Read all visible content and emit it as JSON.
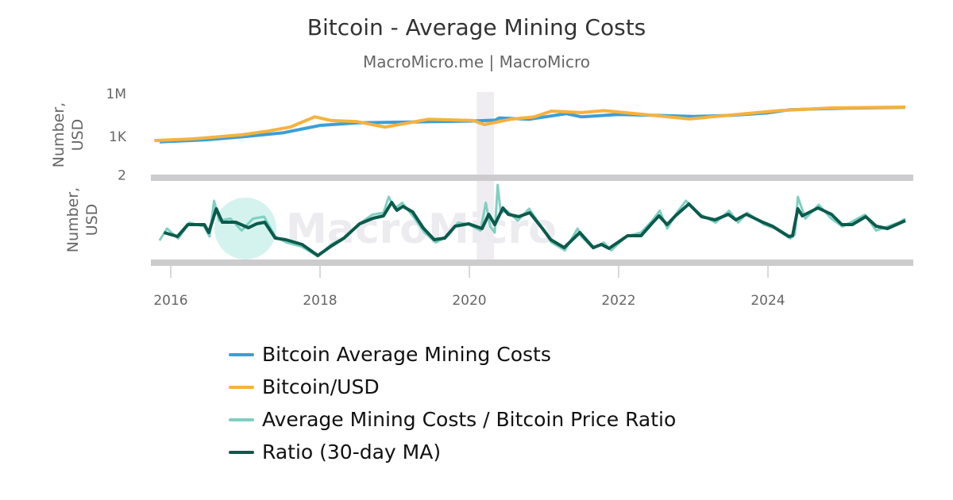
{
  "chart_data": {
    "type": "line",
    "title": "Bitcoin - Average Mining Costs",
    "subtitle": "MacroMicro.me | MacroMicro",
    "watermark": "MacroMicro",
    "x_ticks": [
      "2016",
      "2018",
      "2020",
      "2022",
      "2024"
    ],
    "xlim": [
      2015.8,
      2025.9
    ],
    "shaded_ranges": [
      [
        2020.1,
        2020.33
      ]
    ],
    "panels": [
      {
        "ylabel": "Number, USD",
        "scale": "log",
        "ylim": [
          2,
          1260000
        ],
        "y_ticks": [
          {
            "label": "1M",
            "value": 1000000
          },
          {
            "label": "1K",
            "value": 1000
          },
          {
            "label": "2",
            "value": 2
          }
        ],
        "series": [
          {
            "name": "Bitcoin Average Mining Costs",
            "color": "#3a9fd9",
            "x": [
              2015.85,
              2016.5,
              2017.0,
              2017.5,
              2018.0,
              2018.5,
              2019.0,
              2019.5,
              2020.0,
              2020.35,
              2020.4,
              2020.8,
              2021.3,
              2021.5,
              2022.0,
              2022.5,
              2023.0,
              2023.5,
              2024.0,
              2024.3,
              2025.0,
              2025.84
            ],
            "y": [
              420,
              600,
              1000,
              1800,
              6000,
              9000,
              10000,
              11000,
              12000,
              14000,
              20000,
              16000,
              40000,
              24000,
              35000,
              30000,
              25000,
              30000,
              45000,
              75000,
              95000,
              110000
            ]
          },
          {
            "name": "Bitcoin/USD",
            "color": "#f6b23c",
            "x": [
              2015.78,
              2016.3,
              2016.95,
              2017.3,
              2017.6,
              2017.93,
              2018.15,
              2018.5,
              2018.87,
              2019.45,
              2020.05,
              2020.2,
              2020.55,
              2020.87,
              2021.1,
              2021.5,
              2021.8,
              2022.45,
              2022.95,
              2023.45,
              2024.15,
              2024.85,
              2025.84
            ],
            "y": [
              520,
              680,
              1300,
              2400,
              4600,
              24000,
              13000,
              11000,
              4600,
              16000,
              13000,
              6800,
              16000,
              24000,
              60000,
              47000,
              65000,
              31000,
              17000,
              30000,
              65000,
              100000,
              115000
            ]
          }
        ]
      },
      {
        "ylabel": "Number, USD",
        "scale": "linear",
        "ylim": [
          0,
          2
        ],
        "series": [
          {
            "name": "Average Mining Costs / Bitcoin Price Ratio",
            "color": "#7fcfc2",
            "x": [
              2015.85,
              2015.95,
              2016.1,
              2016.25,
              2016.45,
              2016.52,
              2016.58,
              2016.65,
              2016.8,
              2016.95,
              2017.1,
              2017.25,
              2017.4,
              2017.55,
              2017.75,
              2017.97,
              2018.15,
              2018.35,
              2018.55,
              2018.7,
              2018.85,
              2018.92,
              2019.0,
              2019.1,
              2019.25,
              2019.4,
              2019.55,
              2019.7,
              2019.85,
              2020.0,
              2020.15,
              2020.22,
              2020.28,
              2020.34,
              2020.38,
              2020.42,
              2020.5,
              2020.65,
              2020.8,
              2021.0,
              2021.1,
              2021.28,
              2021.45,
              2021.5,
              2021.66,
              2021.8,
              2021.9,
              2022.1,
              2022.3,
              2022.45,
              2022.55,
              2022.65,
              2022.78,
              2022.9,
              2023.1,
              2023.3,
              2023.48,
              2023.6,
              2023.72,
              2023.95,
              2024.1,
              2024.3,
              2024.36,
              2024.4,
              2024.5,
              2024.68,
              2024.85,
              2025.0,
              2025.15,
              2025.3,
              2025.45,
              2025.6,
              2025.75,
              2025.84
            ],
            "y": [
              0.5,
              0.8,
              0.55,
              0.95,
              0.85,
              0.6,
              1.5,
              1.0,
              1.05,
              0.75,
              1.05,
              1.1,
              0.6,
              0.45,
              0.35,
              0.1,
              0.4,
              0.6,
              0.95,
              1.15,
              1.2,
              1.6,
              1.3,
              1.45,
              1.1,
              0.7,
              0.45,
              0.6,
              0.95,
              0.9,
              0.75,
              1.45,
              0.85,
              0.7,
              1.9,
              1.2,
              1.25,
              1.0,
              1.3,
              0.75,
              0.45,
              0.25,
              0.8,
              0.6,
              0.3,
              0.45,
              0.25,
              0.6,
              0.7,
              1.0,
              1.25,
              0.8,
              1.2,
              1.5,
              1.15,
              0.95,
              1.25,
              0.95,
              1.2,
              0.9,
              0.8,
              0.55,
              0.65,
              1.6,
              1.05,
              1.4,
              1.05,
              0.85,
              1.0,
              1.15,
              0.75,
              0.85,
              0.95,
              1.05
            ]
          },
          {
            "name": "Ratio (30-day MA)",
            "color": "#0b5b4d",
            "x": [
              2015.91,
              2016.09,
              2016.23,
              2016.45,
              2016.51,
              2016.61,
              2016.69,
              2016.87,
              2017.04,
              2017.15,
              2017.26,
              2017.4,
              2017.54,
              2017.76,
              2017.97,
              2018.15,
              2018.32,
              2018.53,
              2018.71,
              2018.85,
              2018.96,
              2019.03,
              2019.11,
              2019.24,
              2019.38,
              2019.53,
              2019.67,
              2019.81,
              2019.99,
              2020.17,
              2020.26,
              2020.34,
              2020.45,
              2020.52,
              2020.66,
              2020.81,
              2020.98,
              2021.09,
              2021.27,
              2021.48,
              2021.66,
              2021.77,
              2021.87,
              2022.12,
              2022.3,
              2022.44,
              2022.54,
              2022.65,
              2022.76,
              2022.94,
              2023.11,
              2023.29,
              2023.47,
              2023.57,
              2023.71,
              2023.93,
              2024.06,
              2024.28,
              2024.33,
              2024.4,
              2024.46,
              2024.67,
              2024.85,
              2024.99,
              2025.13,
              2025.31,
              2025.45,
              2025.6,
              2025.84
            ],
            "y": [
              0.7,
              0.6,
              0.9,
              0.9,
              0.7,
              1.3,
              0.96,
              0.96,
              0.82,
              0.92,
              0.96,
              0.56,
              0.52,
              0.4,
              0.12,
              0.36,
              0.56,
              0.92,
              1.06,
              1.12,
              1.46,
              1.26,
              1.36,
              1.22,
              0.82,
              0.52,
              0.56,
              0.86,
              0.92,
              0.8,
              1.16,
              0.9,
              1.32,
              1.16,
              1.1,
              1.2,
              0.8,
              0.52,
              0.32,
              0.7,
              0.32,
              0.4,
              0.3,
              0.62,
              0.62,
              0.92,
              1.12,
              0.9,
              1.12,
              1.42,
              1.1,
              1.02,
              1.16,
              1.02,
              1.16,
              0.96,
              0.86,
              0.6,
              0.62,
              1.3,
              1.12,
              1.32,
              1.16,
              0.9,
              0.9,
              1.1,
              0.86,
              0.8,
              1.0
            ]
          }
        ]
      }
    ],
    "legend": [
      {
        "label": "Bitcoin Average Mining Costs",
        "color": "#3a9fd9"
      },
      {
        "label": "Bitcoin/USD",
        "color": "#f6b23c"
      },
      {
        "label": "Average Mining Costs / Bitcoin Price Ratio",
        "color": "#7fcfc2"
      },
      {
        "label": "Ratio (30-day MA)",
        "color": "#0b5b4d"
      }
    ],
    "legend_placement": "bottom"
  }
}
